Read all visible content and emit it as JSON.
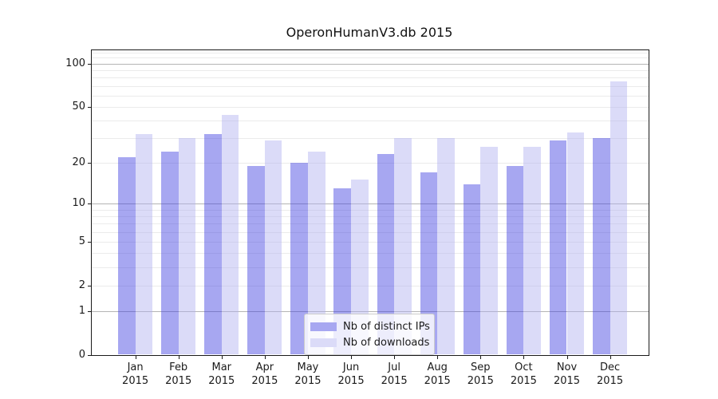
{
  "title": "OperonHumanV3.db 2015",
  "legend": {
    "items": [
      {
        "label": "Nb of distinct IPs",
        "color": "#a7a7f1"
      },
      {
        "label": "Nb of downloads",
        "color": "#dbdbf8"
      }
    ]
  },
  "chart_data": {
    "type": "bar",
    "title": "OperonHumanV3.db 2015",
    "months": [
      "Jan",
      "Feb",
      "Mar",
      "Apr",
      "May",
      "Jun",
      "Jul",
      "Aug",
      "Sep",
      "Oct",
      "Nov",
      "Dec"
    ],
    "year": "2015",
    "categories": [
      "Jan 2015",
      "Feb 2015",
      "Mar 2015",
      "Apr 2015",
      "May 2015",
      "Jun 2015",
      "Jul 2015",
      "Aug 2015",
      "Sep 2015",
      "Oct 2015",
      "Nov 2015",
      "Dec 2015"
    ],
    "series": [
      {
        "name": "Nb of distinct IPs",
        "color": "#a7a7f1",
        "fill_rgba": "rgba(60,60,225,0.45)",
        "values": [
          22,
          24,
          32,
          19,
          20,
          13,
          23,
          17,
          14,
          19,
          29,
          30
        ]
      },
      {
        "name": "Nb of downloads",
        "color": "#dbdbf8",
        "fill_rgba": "rgba(176,176,240,0.45)",
        "values": [
          32,
          30,
          44,
          29,
          24,
          15,
          30,
          30,
          26,
          26,
          33,
          75
        ]
      }
    ],
    "yscale": "log1p",
    "yticks": [
      0,
      1,
      2,
      5,
      10,
      20,
      50,
      100
    ],
    "ylim": [
      0,
      124
    ],
    "xlabel": "",
    "ylabel": "",
    "grid": true,
    "legend_position": "lower center"
  }
}
